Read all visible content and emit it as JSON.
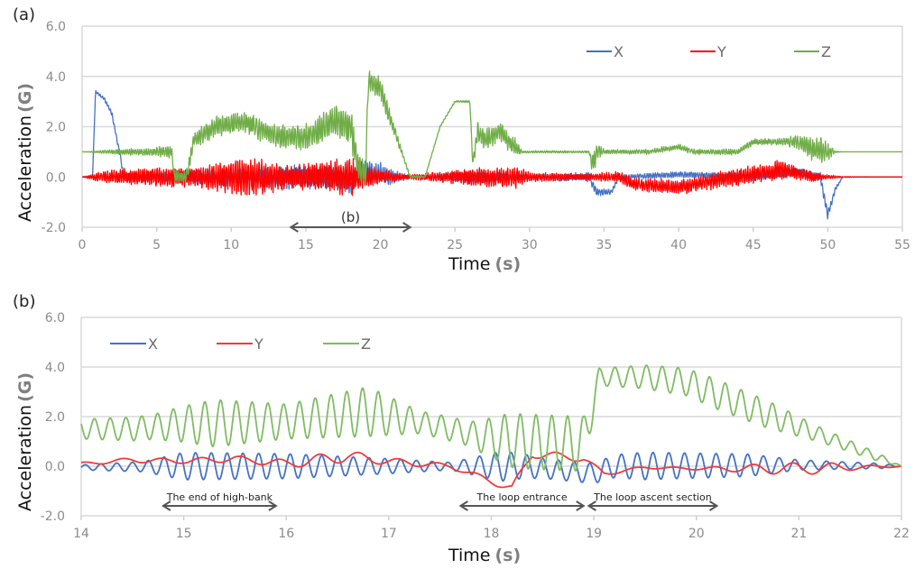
{
  "chart_data": [
    {
      "type": "line",
      "panel_label": "(a)",
      "title": "",
      "xlabel": "Time",
      "xlabel_unit": "(s)",
      "ylabel": "Acceleration",
      "ylabel_unit": "(G)",
      "xlim": [
        0,
        55
      ],
      "ylim": [
        -2.0,
        6.0
      ],
      "xticks": [
        "0",
        "5",
        "10",
        "15",
        "20",
        "25",
        "30",
        "35",
        "40",
        "45",
        "50",
        "55"
      ],
      "yticks": [
        "6.0",
        "4.0",
        "2.0",
        "0.0",
        "-2.0"
      ],
      "grid": true,
      "legend_position": "top-right",
      "annotations": [
        {
          "text": "(b)",
          "x_start": 14,
          "x_end": 22,
          "y": -2.0,
          "type": "double-arrow"
        }
      ],
      "series": [
        {
          "name": "X",
          "color": "#4472c4",
          "baseline": [
            [
              0,
              0
            ],
            [
              0.7,
              0
            ],
            [
              0.9,
              3.4
            ],
            [
              1.5,
              3.1
            ],
            [
              2.0,
              2.5
            ],
            [
              2.5,
              1.0
            ],
            [
              2.8,
              0
            ],
            [
              14,
              0
            ],
            [
              17,
              0
            ],
            [
              18,
              -0.3
            ],
            [
              19,
              0.2
            ],
            [
              21,
              0
            ],
            [
              25,
              0
            ],
            [
              34,
              0
            ],
            [
              34.5,
              -0.6
            ],
            [
              35.5,
              -0.6
            ],
            [
              36,
              0
            ],
            [
              40,
              0.1
            ],
            [
              45,
              0
            ],
            [
              48,
              0.2
            ],
            [
              49.5,
              0
            ],
            [
              50,
              -1.5
            ],
            [
              50.5,
              -0.5
            ],
            [
              51,
              0
            ],
            [
              55,
              0
            ]
          ],
          "noise": [
            [
              0,
              0
            ],
            [
              3,
              0.15
            ],
            [
              9,
              0.35
            ],
            [
              14,
              0.5
            ],
            [
              20,
              0.5
            ],
            [
              22,
              0.05
            ],
            [
              26,
              0.3
            ],
            [
              29,
              0.1
            ],
            [
              34,
              0.2
            ],
            [
              36,
              0.1
            ],
            [
              50,
              0.2
            ],
            [
              51,
              0
            ],
            [
              55,
              0
            ]
          ]
        },
        {
          "name": "Y",
          "color": "#ff0000",
          "baseline": [
            [
              0,
              0
            ],
            [
              30,
              0
            ],
            [
              36,
              0
            ],
            [
              37,
              -0.3
            ],
            [
              40,
              -0.4
            ],
            [
              42,
              -0.2
            ],
            [
              44,
              0
            ],
            [
              46,
              0.2
            ],
            [
              47,
              0.3
            ],
            [
              49,
              0
            ],
            [
              55,
              0
            ]
          ],
          "noise": [
            [
              0,
              0
            ],
            [
              1.5,
              0.3
            ],
            [
              8,
              0.5
            ],
            [
              11,
              0.9
            ],
            [
              14,
              0.5
            ],
            [
              18,
              0.8
            ],
            [
              20,
              0.3
            ],
            [
              22,
              0.1
            ],
            [
              25,
              0.3
            ],
            [
              29,
              0.5
            ],
            [
              30,
              0.2
            ],
            [
              34,
              0.15
            ],
            [
              38,
              0.3
            ],
            [
              47,
              0.4
            ],
            [
              50,
              0.1
            ],
            [
              51,
              0.02
            ],
            [
              55,
              0
            ]
          ]
        },
        {
          "name": "Z",
          "color": "#70ad47",
          "baseline": [
            [
              0,
              1
            ],
            [
              6,
              1
            ],
            [
              6.2,
              0
            ],
            [
              7,
              0
            ],
            [
              7.5,
              1.5
            ],
            [
              9,
              2
            ],
            [
              11,
              2.2
            ],
            [
              13,
              1.6
            ],
            [
              15,
              1.6
            ],
            [
              17,
              2.2
            ],
            [
              18,
              2
            ],
            [
              18.5,
              0.5
            ],
            [
              19,
              0
            ],
            [
              19.2,
              3.8
            ],
            [
              20,
              3.5
            ],
            [
              22,
              0
            ],
            [
              23,
              0
            ],
            [
              24,
              2
            ],
            [
              25,
              3
            ],
            [
              26,
              3
            ],
            [
              26.2,
              0.5
            ],
            [
              26.5,
              1.8
            ],
            [
              27,
              1.5
            ],
            [
              28,
              1.8
            ],
            [
              29,
              1.2
            ],
            [
              29.5,
              1
            ],
            [
              34,
              1
            ],
            [
              34.2,
              0.5
            ],
            [
              34.5,
              1
            ],
            [
              38,
              1
            ],
            [
              40,
              1.2
            ],
            [
              41,
              1
            ],
            [
              44,
              1
            ],
            [
              45,
              1.4
            ],
            [
              48,
              1.4
            ],
            [
              49,
              1.1
            ],
            [
              49.7,
              1
            ],
            [
              55,
              1
            ]
          ],
          "noise": [
            [
              0,
              0
            ],
            [
              2,
              0.1
            ],
            [
              5,
              0.2
            ],
            [
              8,
              0.4
            ],
            [
              12,
              0.5
            ],
            [
              16,
              0.6
            ],
            [
              18,
              0.8
            ],
            [
              19,
              0.6
            ],
            [
              20,
              0.5
            ],
            [
              21.5,
              0.1
            ],
            [
              23,
              0.02
            ],
            [
              26,
              0.05
            ],
            [
              26.5,
              0.5
            ],
            [
              29,
              0.4
            ],
            [
              29.5,
              0.05
            ],
            [
              34,
              0.05
            ],
            [
              34.3,
              0.6
            ],
            [
              35,
              0.1
            ],
            [
              47,
              0.15
            ],
            [
              49.6,
              0.6
            ],
            [
              50.5,
              0.05
            ],
            [
              51,
              0
            ],
            [
              55,
              0
            ]
          ]
        }
      ]
    },
    {
      "type": "line",
      "panel_label": "(b)",
      "title": "",
      "xlabel": "Time",
      "xlabel_unit": "(s)",
      "ylabel": "Acceleration",
      "ylabel_unit": "(G)",
      "xlim": [
        14,
        22
      ],
      "ylim": [
        -2.0,
        6.0
      ],
      "xticks": [
        "14",
        "15",
        "16",
        "17",
        "18",
        "19",
        "20",
        "21",
        "22"
      ],
      "yticks": [
        "6.0",
        "4.0",
        "2.0",
        "0.0",
        "-2.0"
      ],
      "grid": true,
      "legend_position": "top-left",
      "annotations": [
        {
          "text": "The end of high-bank",
          "x_start": 14.8,
          "x_end": 15.9,
          "y": -1.6,
          "type": "double-arrow"
        },
        {
          "text": "The loop entrance",
          "x_start": 17.7,
          "x_end": 18.9,
          "y": -1.6,
          "type": "double-arrow"
        },
        {
          "text": "The loop ascent section",
          "x_start": 18.95,
          "x_end": 20.2,
          "y": -1.6,
          "type": "double-arrow"
        }
      ],
      "series": [
        {
          "name": "X",
          "color": "#4472c4",
          "baseline": [
            [
              14,
              -0.05
            ],
            [
              15,
              0
            ],
            [
              18,
              0
            ],
            [
              18.3,
              0
            ],
            [
              19,
              -0.3
            ],
            [
              19.2,
              0
            ],
            [
              21,
              0.05
            ],
            [
              22,
              0
            ]
          ],
          "noise": [
            [
              14,
              0.1
            ],
            [
              14.6,
              0.2
            ],
            [
              15,
              0.55
            ],
            [
              16,
              0.5
            ],
            [
              17,
              0.3
            ],
            [
              17.6,
              0.15
            ],
            [
              18.1,
              0.6
            ],
            [
              18.5,
              0.4
            ],
            [
              19,
              0.4
            ],
            [
              19.5,
              0.55
            ],
            [
              20.5,
              0.45
            ],
            [
              21,
              0.2
            ],
            [
              21.8,
              0.1
            ],
            [
              22,
              0
            ]
          ]
        },
        {
          "name": "Y",
          "color": "#ef3b3b",
          "baseline": [
            [
              14,
              0.1
            ],
            [
              14.5,
              0.25
            ],
            [
              15,
              0.2
            ],
            [
              15.5,
              0.3
            ],
            [
              16,
              0.1
            ],
            [
              16.6,
              0.4
            ],
            [
              17,
              0.2
            ],
            [
              17.6,
              0
            ],
            [
              18,
              -0.6
            ],
            [
              18.2,
              -0.9
            ],
            [
              18.4,
              0.5
            ],
            [
              18.9,
              0.3
            ],
            [
              19.1,
              -0.3
            ],
            [
              19.5,
              -0.05
            ],
            [
              20,
              -0.1
            ],
            [
              21,
              -0.1
            ],
            [
              22,
              0
            ]
          ],
          "noise": [
            [
              14,
              0.1
            ],
            [
              15,
              0.1
            ],
            [
              15.8,
              0.35
            ],
            [
              16.2,
              0.3
            ],
            [
              17,
              0.15
            ],
            [
              18,
              0.25
            ],
            [
              19,
              0.1
            ],
            [
              20,
              0.1
            ],
            [
              21.3,
              0.3
            ],
            [
              22,
              0.05
            ]
          ]
        },
        {
          "name": "Z",
          "color": "#80bb64",
          "baseline": [
            [
              14,
              1.5
            ],
            [
              14.5,
              1.5
            ],
            [
              15,
              1.7
            ],
            [
              16,
              1.8
            ],
            [
              16.8,
              2.2
            ],
            [
              17.5,
              1.6
            ],
            [
              17.9,
              1.2
            ],
            [
              18.3,
              1.0
            ],
            [
              18.9,
              0.9
            ],
            [
              19.05,
              3.6
            ],
            [
              19.5,
              3.6
            ],
            [
              19.9,
              3.4
            ],
            [
              20.5,
              2.4
            ],
            [
              21,
              1.6
            ],
            [
              21.5,
              0.8
            ],
            [
              22,
              0
            ]
          ],
          "noise": [
            [
              14,
              0.4
            ],
            [
              14.7,
              0.5
            ],
            [
              15.3,
              0.95
            ],
            [
              16,
              0.7
            ],
            [
              16.8,
              1.0
            ],
            [
              17.3,
              0.45
            ],
            [
              17.8,
              0.5
            ],
            [
              18.2,
              1.1
            ],
            [
              18.9,
              1.1
            ],
            [
              19.05,
              0.35
            ],
            [
              19.6,
              0.5
            ],
            [
              20.2,
              0.6
            ],
            [
              20.7,
              0.55
            ],
            [
              21.2,
              0.3
            ],
            [
              21.8,
              0.15
            ],
            [
              22,
              0
            ]
          ]
        }
      ]
    }
  ]
}
